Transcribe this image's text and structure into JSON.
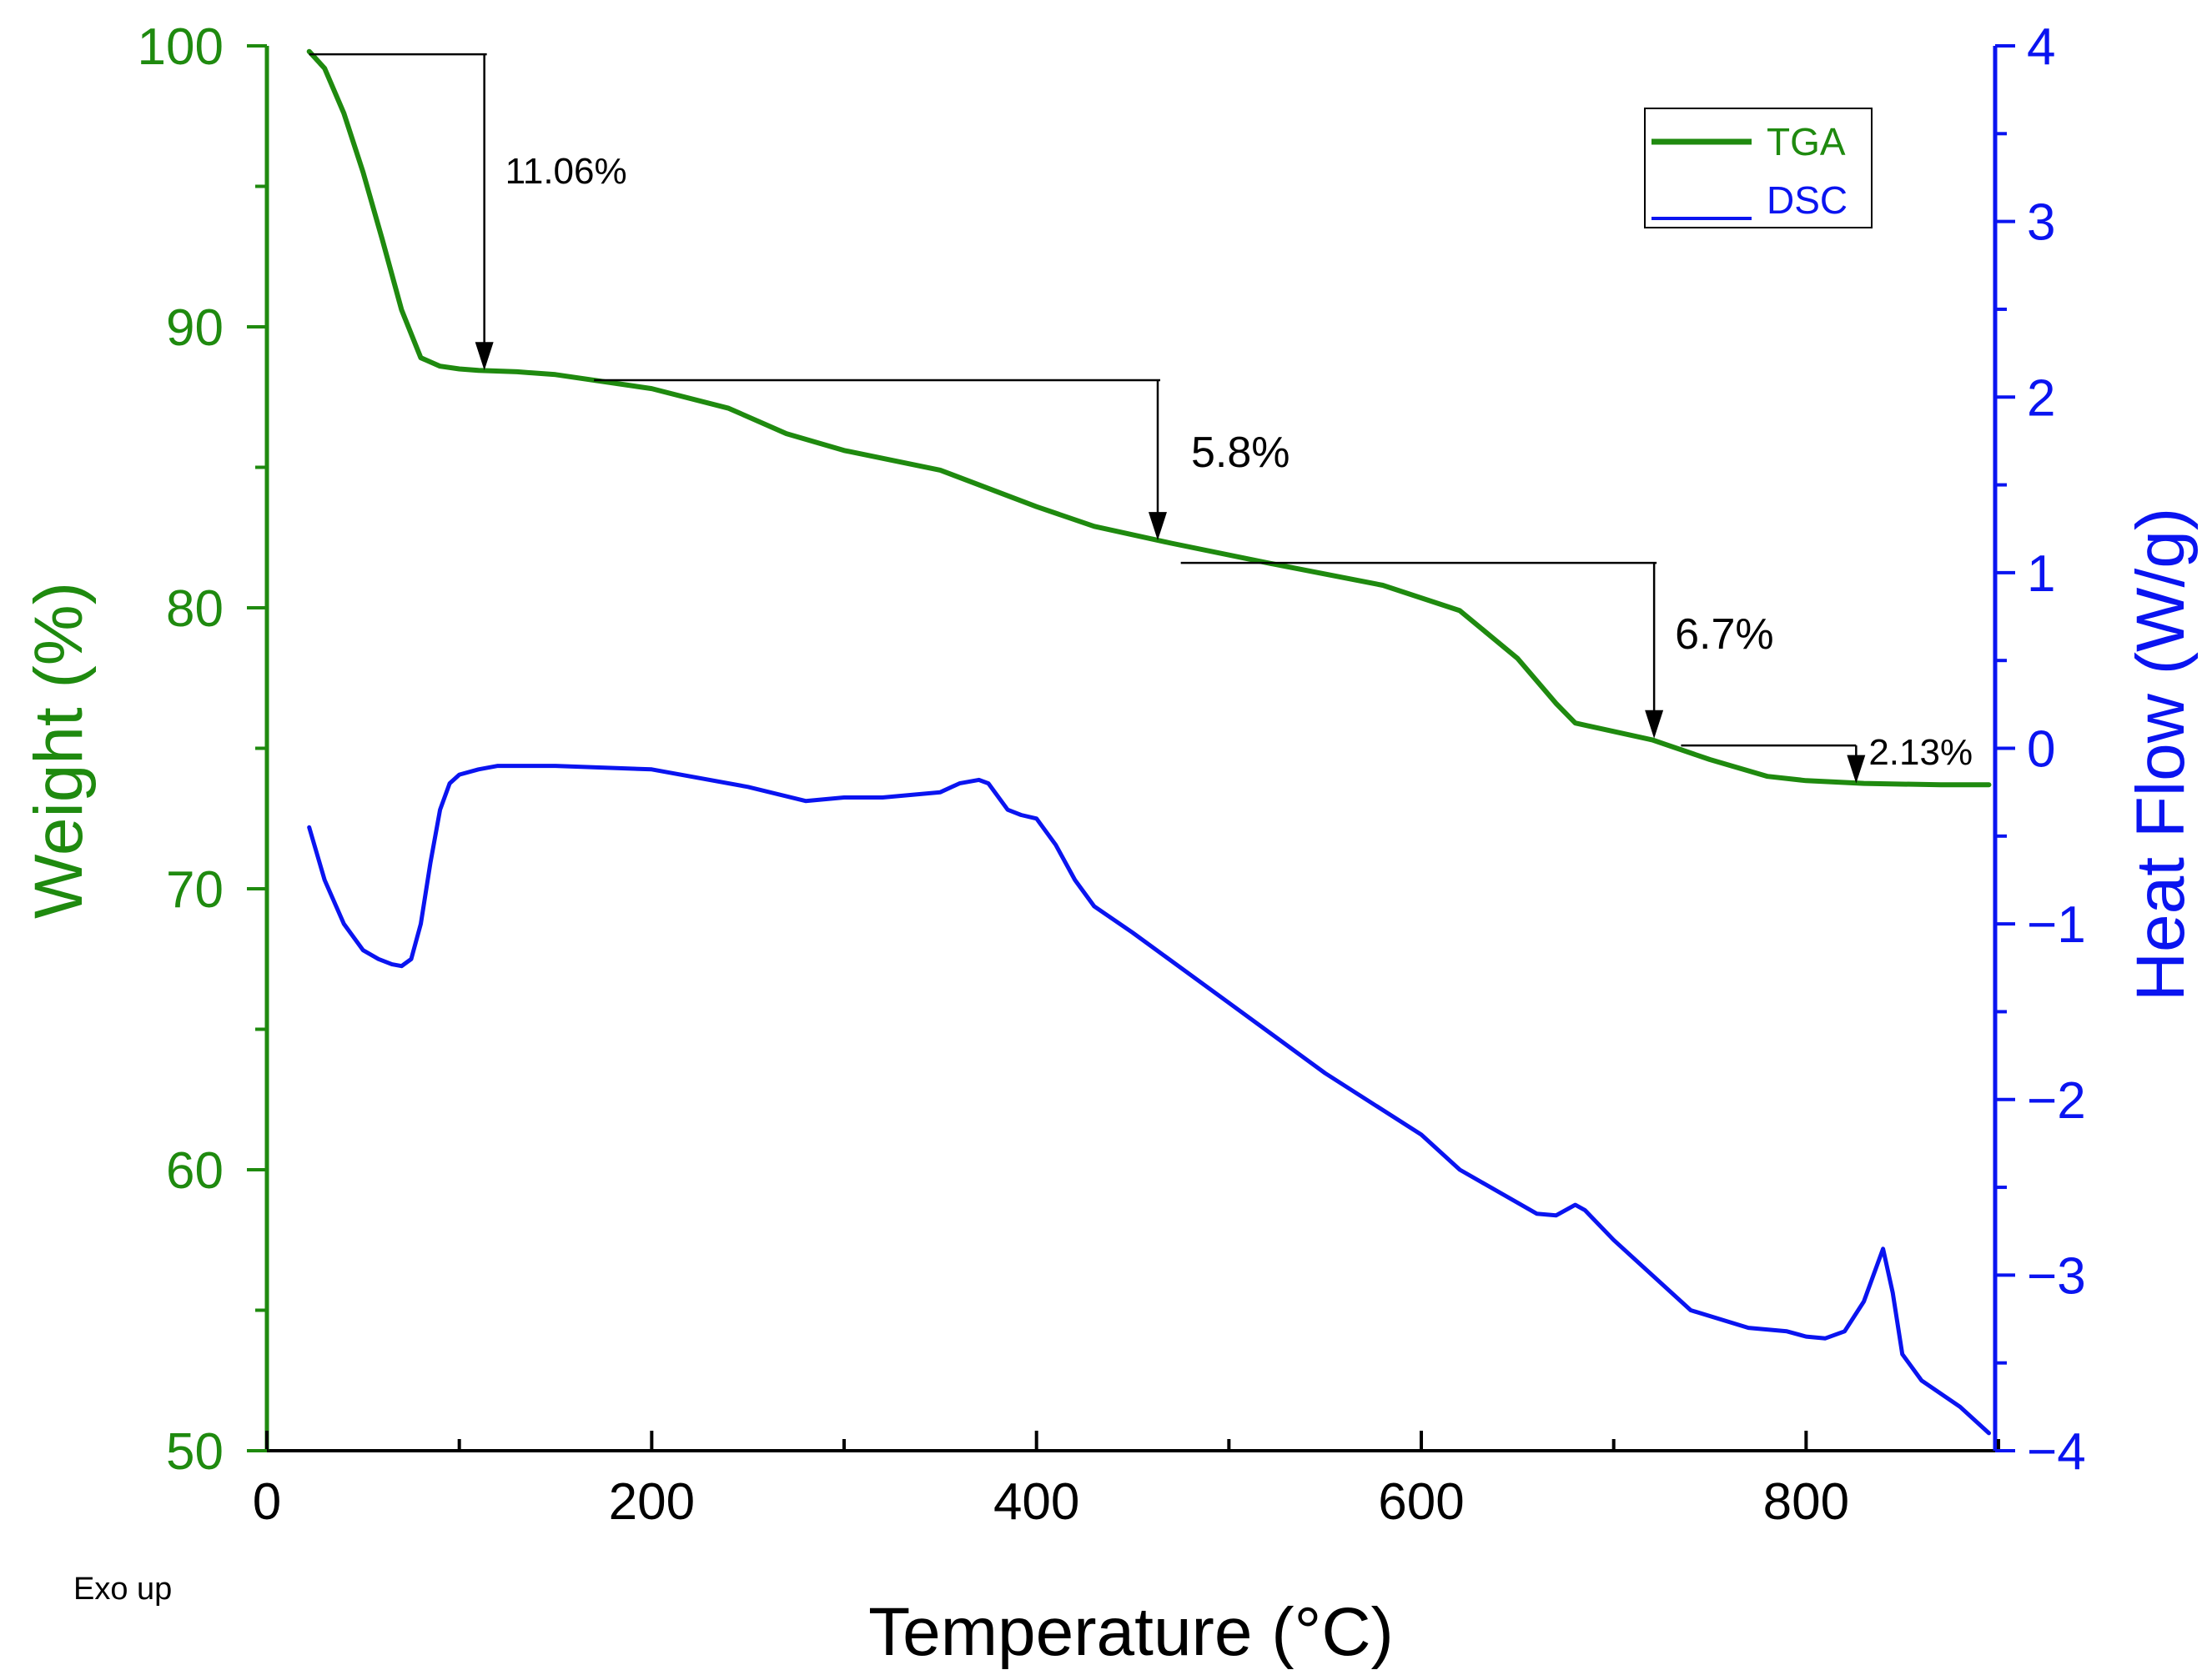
{
  "chart_data": {
    "type": "line",
    "xlabel": "Temperature (°C)",
    "ylabel_left": "Weight (%)",
    "ylabel_right": "Heat Flow (W/g)",
    "note": "Exo up",
    "xlim": [
      0,
      900
    ],
    "ylim_left": [
      50,
      100
    ],
    "ylim_right": [
      -4,
      4
    ],
    "xticks": [
      "0",
      "200",
      "400",
      "600",
      "800"
    ],
    "yticks_left": [
      "50",
      "60",
      "70",
      "80",
      "90",
      "100"
    ],
    "yticks_right": [
      "-4",
      "-3",
      "-2",
      "-1",
      "0",
      "1",
      "2",
      "3",
      "4"
    ],
    "legend": {
      "position": "top-right",
      "entries": [
        "TGA",
        "DSC"
      ]
    },
    "colors": {
      "tga": "#1f8a0f",
      "dsc": "#0a14f0",
      "axis_left": "#1f8a0f",
      "axis_right": "#0a14f0",
      "annotation": "#000000"
    },
    "series": [
      {
        "name": "TGA",
        "axis": "left",
        "x": [
          22,
          30,
          40,
          50,
          60,
          70,
          80,
          90,
          100,
          110,
          130,
          150,
          200,
          240,
          270,
          300,
          350,
          400,
          430,
          470,
          520,
          580,
          620,
          650,
          670,
          680,
          700,
          720,
          750,
          780,
          800,
          830,
          870,
          895
        ],
        "y": [
          99.8,
          99.2,
          97.6,
          95.5,
          93.1,
          90.6,
          88.9,
          88.6,
          88.5,
          88.45,
          88.4,
          88.3,
          87.8,
          87.1,
          86.2,
          85.6,
          84.9,
          83.6,
          82.9,
          82.3,
          81.6,
          80.8,
          79.9,
          78.2,
          76.6,
          75.9,
          75.6,
          75.3,
          74.6,
          74.0,
          73.85,
          73.75,
          73.7,
          73.7
        ]
      },
      {
        "name": "DSC",
        "axis": "right",
        "x": [
          22,
          30,
          40,
          50,
          58,
          65,
          70,
          75,
          80,
          85,
          90,
          95,
          100,
          110,
          120,
          150,
          200,
          250,
          280,
          300,
          320,
          350,
          360,
          370,
          375,
          385,
          392,
          400,
          410,
          420,
          430,
          450,
          500,
          550,
          600,
          620,
          660,
          670,
          680,
          685,
          700,
          740,
          770,
          790,
          800,
          810,
          820,
          830,
          835,
          840,
          845,
          850,
          860,
          880,
          895
        ],
        "y": [
          -0.45,
          -0.75,
          -1.0,
          -1.15,
          -1.2,
          -1.23,
          -1.24,
          -1.2,
          -1.0,
          -0.65,
          -0.35,
          -0.2,
          -0.15,
          -0.12,
          -0.1,
          -0.1,
          -0.12,
          -0.22,
          -0.3,
          -0.28,
          -0.28,
          -0.25,
          -0.2,
          -0.18,
          -0.2,
          -0.35,
          -0.38,
          -0.4,
          -0.55,
          -0.75,
          -0.9,
          -1.05,
          -1.45,
          -1.85,
          -2.2,
          -2.4,
          -2.65,
          -2.66,
          -2.6,
          -2.63,
          -2.8,
          -3.2,
          -3.3,
          -3.32,
          -3.35,
          -3.36,
          -3.32,
          -3.15,
          -3.0,
          -2.85,
          -3.1,
          -3.45,
          -3.6,
          -3.75,
          -3.9
        ]
      }
    ],
    "annotations": [
      {
        "label": "11.06%",
        "x": 113,
        "y_from": 99.7,
        "y_to": 88.45
      },
      {
        "label": "5.8%",
        "x": 463,
        "y_from": 88.1,
        "y_to": 82.4
      },
      {
        "label": "6.7%",
        "x": 721,
        "y_from": 81.6,
        "y_to": 75.35
      },
      {
        "label": "2.13%",
        "x": 826,
        "y_from": 75.1,
        "y_to": 73.75
      }
    ]
  }
}
